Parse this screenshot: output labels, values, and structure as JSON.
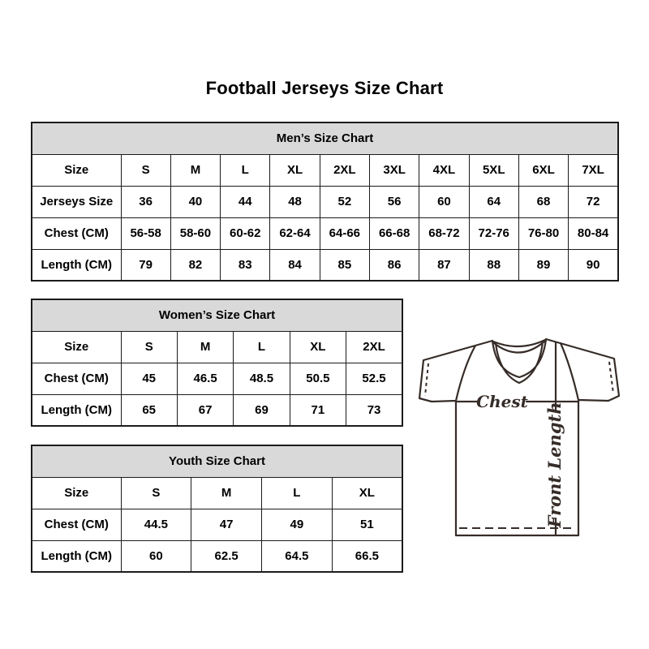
{
  "page": {
    "title": "Football Jerseys Size Chart"
  },
  "tables": {
    "mens": {
      "title": "Men’s Size Chart",
      "rows": [
        [
          "Size",
          "S",
          "M",
          "L",
          "XL",
          "2XL",
          "3XL",
          "4XL",
          "5XL",
          "6XL",
          "7XL"
        ],
        [
          "Jerseys Size",
          "36",
          "40",
          "44",
          "48",
          "52",
          "56",
          "60",
          "64",
          "68",
          "72"
        ],
        [
          "Chest (CM)",
          "56-58",
          "58-60",
          "60-62",
          "62-64",
          "64-66",
          "66-68",
          "68-72",
          "72-76",
          "76-80",
          "80-84"
        ],
        [
          "Length (CM)",
          "79",
          "82",
          "83",
          "84",
          "85",
          "86",
          "87",
          "88",
          "89",
          "90"
        ]
      ]
    },
    "womens": {
      "title": "Women’s Size Chart",
      "rows": [
        [
          "Size",
          "S",
          "M",
          "L",
          "XL",
          "2XL"
        ],
        [
          "Chest (CM)",
          "45",
          "46.5",
          "48.5",
          "50.5",
          "52.5"
        ],
        [
          "Length (CM)",
          "65",
          "67",
          "69",
          "71",
          "73"
        ]
      ]
    },
    "youth": {
      "title": "Youth Size Chart",
      "rows": [
        [
          "Size",
          "S",
          "M",
          "L",
          "XL"
        ],
        [
          "Chest (CM)",
          "44.5",
          "47",
          "49",
          "51"
        ],
        [
          "Length (CM)",
          "60",
          "62.5",
          "64.5",
          "66.5"
        ]
      ]
    }
  },
  "diagram": {
    "chest_label": "Chest",
    "front_length_label": "Front Length"
  },
  "colors": {
    "header_bg": "#d9d9d9",
    "border": "#1b1b1b",
    "text": "#000000",
    "diagram_stroke": "#362c28"
  }
}
